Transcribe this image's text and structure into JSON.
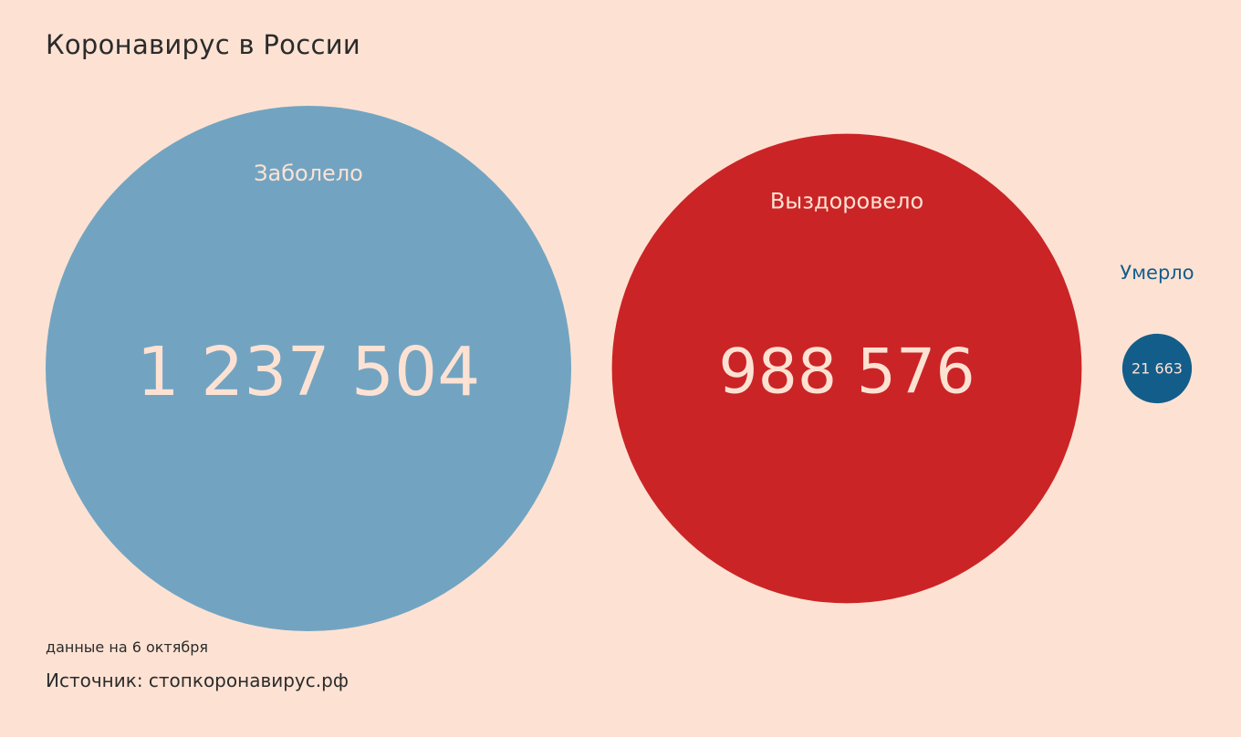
{
  "title": "Коронавирус в России",
  "footnote": "данные на 6 октября",
  "source": "Источник: стопкоронавирус.рф",
  "chart_data": {
    "type": "bubble",
    "categories": [
      "Заболело",
      "Выздоровело",
      "Умерло"
    ],
    "values": [
      1237504,
      988576,
      21663
    ],
    "value_labels": [
      "1 237 504",
      "988 576",
      "21 663"
    ],
    "colors": [
      "#72a4c2",
      "#cb2426",
      "#135d8a"
    ],
    "text_color": "#fde2d3",
    "outside_label_color": "#135d8a"
  }
}
